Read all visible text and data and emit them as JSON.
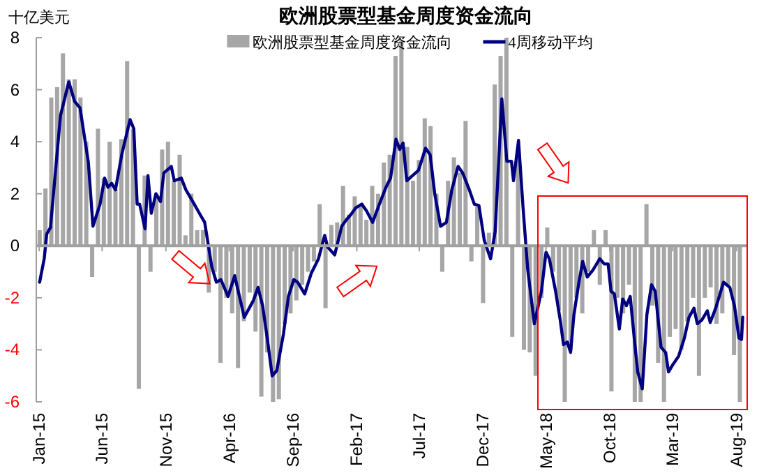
{
  "chart_data": {
    "type": "bar",
    "title": "欧洲股票型基金周度资金流向",
    "ylabel": "十亿美元",
    "xlim": [
      "2014-12-25",
      "2019-08-25"
    ],
    "xticks": [
      {
        "value": "2015-01-01",
        "label": "Jan-15"
      },
      {
        "value": "2015-06-01",
        "label": "Jun-15"
      },
      {
        "value": "2015-11-01",
        "label": "Nov-15"
      },
      {
        "value": "2016-04-01",
        "label": "Apr-16"
      },
      {
        "value": "2016-09-01",
        "label": "Sep-16"
      },
      {
        "value": "2017-02-01",
        "label": "Feb-17"
      },
      {
        "value": "2017-07-01",
        "label": "Jul-17"
      },
      {
        "value": "2017-12-01",
        "label": "Dec-17"
      },
      {
        "value": "2018-05-01",
        "label": "May-18"
      },
      {
        "value": "2018-10-01",
        "label": "Oct-18"
      },
      {
        "value": "2019-03-01",
        "label": "Mar-19"
      },
      {
        "value": "2019-08-01",
        "label": "Aug-19"
      }
    ],
    "ylim": [
      -6,
      8
    ],
    "yticks": [
      -6,
      -4,
      -2,
      0,
      2,
      4,
      6,
      8
    ],
    "legend": "top",
    "series": [
      {
        "name": "欧洲股票型基金周度资金流向",
        "color": "#a6a6a6",
        "x": [
          "2015-01-02",
          "2015-01-16",
          "2015-01-30",
          "2015-02-13",
          "2015-02-27",
          "2015-03-13",
          "2015-03-27",
          "2015-04-10",
          "2015-04-24",
          "2015-05-08",
          "2015-05-22",
          "2015-06-05",
          "2015-06-19",
          "2015-07-03",
          "2015-07-17",
          "2015-07-31",
          "2015-08-14",
          "2015-08-28",
          "2015-09-11",
          "2015-09-25",
          "2015-10-09",
          "2015-10-23",
          "2015-11-06",
          "2015-11-20",
          "2015-12-04",
          "2015-12-18",
          "2016-01-01",
          "2016-01-15",
          "2016-01-29",
          "2016-02-12",
          "2016-02-26",
          "2016-03-11",
          "2016-03-25",
          "2016-04-08",
          "2016-04-22",
          "2016-05-06",
          "2016-05-20",
          "2016-06-03",
          "2016-06-17",
          "2016-07-01",
          "2016-07-15",
          "2016-07-29",
          "2016-08-12",
          "2016-08-26",
          "2016-09-09",
          "2016-09-23",
          "2016-10-07",
          "2016-10-21",
          "2016-11-04",
          "2016-11-18",
          "2016-12-02",
          "2016-12-16",
          "2016-12-30",
          "2017-01-13",
          "2017-01-27",
          "2017-02-10",
          "2017-02-24",
          "2017-03-10",
          "2017-03-24",
          "2017-04-07",
          "2017-04-21",
          "2017-05-05",
          "2017-05-19",
          "2017-06-02",
          "2017-06-16",
          "2017-06-30",
          "2017-07-14",
          "2017-07-28",
          "2017-08-11",
          "2017-08-25",
          "2017-09-08",
          "2017-09-22",
          "2017-10-06",
          "2017-10-20",
          "2017-11-03",
          "2017-11-17",
          "2017-12-01",
          "2017-12-15",
          "2017-12-29",
          "2018-01-12",
          "2018-01-26",
          "2018-02-09",
          "2018-02-23",
          "2018-03-09",
          "2018-03-23",
          "2018-04-06",
          "2018-04-20",
          "2018-05-04",
          "2018-05-18",
          "2018-06-01",
          "2018-06-15",
          "2018-06-29",
          "2018-07-13",
          "2018-07-27",
          "2018-08-10",
          "2018-08-24",
          "2018-09-07",
          "2018-09-21",
          "2018-10-05",
          "2018-10-19",
          "2018-11-02",
          "2018-11-16",
          "2018-11-30",
          "2018-12-14",
          "2018-12-28",
          "2019-01-11",
          "2019-01-25",
          "2019-02-08",
          "2019-02-22",
          "2019-03-08",
          "2019-03-22",
          "2019-04-05",
          "2019-04-19",
          "2019-05-03",
          "2019-05-17",
          "2019-05-31",
          "2019-06-14",
          "2019-06-28",
          "2019-07-12",
          "2019-07-26",
          "2019-08-09"
        ],
        "values": [
          0.6,
          2.2,
          5.7,
          6.1,
          7.4,
          6.4,
          6.4,
          5.7,
          4.0,
          -1.2,
          4.5,
          2.6,
          4.0,
          2.2,
          4.1,
          7.1,
          4.5,
          -5.5,
          2.7,
          -1.0,
          2.0,
          3.7,
          4.0,
          2.5,
          3.5,
          0.4,
          2.0,
          0.6,
          0.6,
          -1.8,
          -1.0,
          -4.5,
          -2.0,
          -2.6,
          -4.7,
          -2.9,
          -1.8,
          -3.3,
          -5.8,
          -4.1,
          -6.0,
          -5.9,
          -3.0,
          -2.6,
          -2.1,
          -1.5,
          -1.0,
          -0.6,
          1.6,
          -2.4,
          0.8,
          0.9,
          2.3,
          1.2,
          1.9,
          1.5,
          1.0,
          2.3,
          2.0,
          3.2,
          3.5,
          7.3,
          7.9,
          3.8,
          2.5,
          3.3,
          4.9,
          4.6,
          2.0,
          -1.0,
          2.5,
          3.4,
          2.8,
          4.8,
          -0.6,
          1.5,
          -2.2,
          0.5,
          6.2,
          7.3,
          8.0,
          -3.5,
          3.4,
          -4.0,
          -4.1,
          -5.0,
          -2.0,
          0.7,
          -1.0,
          -2.5,
          -6.0,
          -4.0,
          -2.0,
          -2.6,
          -1.0,
          0.6,
          -1.5,
          0.6,
          -5.6,
          -2.0,
          -2.6,
          -1.5,
          -6.0,
          -6.0,
          1.6,
          -2.3,
          -4.5,
          -6.0,
          -3.5,
          -3.2,
          -4.0,
          -2.9,
          -2.0,
          -5.0,
          -2.0,
          -1.6,
          -3.0,
          -2.6,
          -1.5,
          -4.2,
          -6.0
        ]
      },
      {
        "name": "4周移动平均",
        "type": "line",
        "color": "#000080",
        "marker": "none",
        "line_style": "solid",
        "x": [
          "2015-01-02",
          "2015-01-13",
          "2015-01-19",
          "2015-01-28",
          "2015-02-21",
          "2015-03-13",
          "2015-03-27",
          "2015-04-09",
          "2015-04-29",
          "2015-05-10",
          "2015-05-27",
          "2015-06-07",
          "2015-06-15",
          "2015-06-24",
          "2015-07-03",
          "2015-07-18",
          "2015-08-07",
          "2015-08-16",
          "2015-08-24",
          "2015-08-30",
          "2015-09-12",
          "2015-09-19",
          "2015-09-27",
          "2015-10-08",
          "2015-10-19",
          "2015-10-27",
          "2015-11-14",
          "2015-11-21",
          "2015-12-08",
          "2015-12-19",
          "2016-01-08",
          "2016-01-22",
          "2016-02-02",
          "2016-02-19",
          "2016-03-01",
          "2016-03-12",
          "2016-03-29",
          "2016-04-14",
          "2016-05-07",
          "2016-05-29",
          "2016-06-09",
          "2016-06-20",
          "2016-07-02",
          "2016-07-13",
          "2016-07-24",
          "2016-08-09",
          "2016-08-21",
          "2016-09-03",
          "2016-09-12",
          "2016-09-29",
          "2016-10-15",
          "2016-11-01",
          "2016-11-16",
          "2016-11-23",
          "2016-12-10",
          "2016-12-27",
          "2017-01-07",
          "2017-01-18",
          "2017-01-29",
          "2017-02-13",
          "2017-02-24",
          "2017-03-11",
          "2017-03-26",
          "2017-04-12",
          "2017-04-23",
          "2017-05-06",
          "2017-05-15",
          "2017-05-23",
          "2017-06-01",
          "2017-06-15",
          "2017-06-29",
          "2017-07-16",
          "2017-07-27",
          "2017-08-07",
          "2017-08-21",
          "2017-09-04",
          "2017-09-17",
          "2017-10-02",
          "2017-10-13",
          "2017-10-29",
          "2017-11-10",
          "2017-11-21",
          "2017-12-04",
          "2017-12-19",
          "2017-12-30",
          "2018-01-15",
          "2018-01-27",
          "2018-02-07",
          "2018-02-12",
          "2018-02-24",
          "2018-03-07",
          "2018-03-18",
          "2018-04-03",
          "2018-04-20",
          "2018-05-01",
          "2018-05-09",
          "2018-05-24",
          "2018-06-04",
          "2018-06-12",
          "2018-06-21",
          "2018-06-29",
          "2018-07-07",
          "2018-07-19",
          "2018-07-28",
          "2018-08-08",
          "2018-08-21",
          "2018-09-07",
          "2018-09-18",
          "2018-09-27",
          "2018-10-04",
          "2018-10-12",
          "2018-10-24",
          "2018-11-01",
          "2018-11-10",
          "2018-11-19",
          "2018-11-29",
          "2018-12-07",
          "2018-12-18",
          "2018-12-29",
          "2019-01-09",
          "2019-01-18",
          "2019-02-01",
          "2019-02-12",
          "2019-02-19",
          "2019-03-02",
          "2019-03-15",
          "2019-03-29",
          "2019-04-09",
          "2019-04-21",
          "2019-04-29",
          "2019-05-10",
          "2019-05-23",
          "2019-05-30",
          "2019-06-12",
          "2019-07-01",
          "2019-07-16",
          "2019-07-27",
          "2019-08-07",
          "2019-08-13",
          "2019-08-16"
        ],
        "values": [
          -1.4,
          -0.5,
          0.45,
          0.7,
          5.0,
          6.3,
          5.55,
          5.3,
          3.2,
          0.75,
          1.6,
          2.6,
          2.25,
          2.4,
          2.15,
          3.5,
          4.85,
          4.5,
          1.6,
          1.6,
          0.65,
          2.7,
          1.25,
          2.0,
          1.7,
          2.8,
          3.05,
          2.5,
          2.6,
          2.15,
          1.6,
          1.2,
          0.9,
          -0.8,
          -1.4,
          -1.3,
          -1.95,
          -1.15,
          -2.75,
          -2.1,
          -1.6,
          -2.3,
          -3.65,
          -5.0,
          -4.8,
          -3.4,
          -1.95,
          -1.3,
          -1.4,
          -1.85,
          -1.05,
          -0.5,
          0.4,
          -0.05,
          -0.35,
          0.75,
          1.0,
          1.2,
          1.45,
          1.6,
          1.35,
          0.9,
          1.55,
          2.25,
          2.6,
          4.1,
          3.7,
          3.95,
          2.5,
          2.7,
          2.9,
          3.75,
          3.5,
          2.0,
          0.75,
          0.9,
          2.15,
          3.05,
          2.8,
          2.15,
          1.6,
          1.55,
          0.2,
          -0.5,
          0.55,
          5.65,
          3.25,
          3.25,
          2.5,
          4.05,
          1.45,
          -0.9,
          -3.0,
          -1.75,
          -0.25,
          -0.5,
          -1.75,
          -2.85,
          -3.8,
          -3.7,
          -4.1,
          -2.65,
          -1.4,
          -0.6,
          -1.2,
          -0.95,
          -0.5,
          -0.7,
          -0.7,
          -1.75,
          -1.85,
          -3.2,
          -2.05,
          -2.3,
          -1.95,
          -3.6,
          -4.85,
          -5.5,
          -2.65,
          -1.5,
          -1.75,
          -3.9,
          -4.1,
          -4.85,
          -4.55,
          -4.25,
          -3.55,
          -2.75,
          -2.4,
          -3.0,
          -2.85,
          -2.5,
          -2.95,
          -2.4,
          -1.4,
          -1.6,
          -2.3,
          -3.55,
          -3.6,
          -2.75
        ]
      }
    ]
  }
}
